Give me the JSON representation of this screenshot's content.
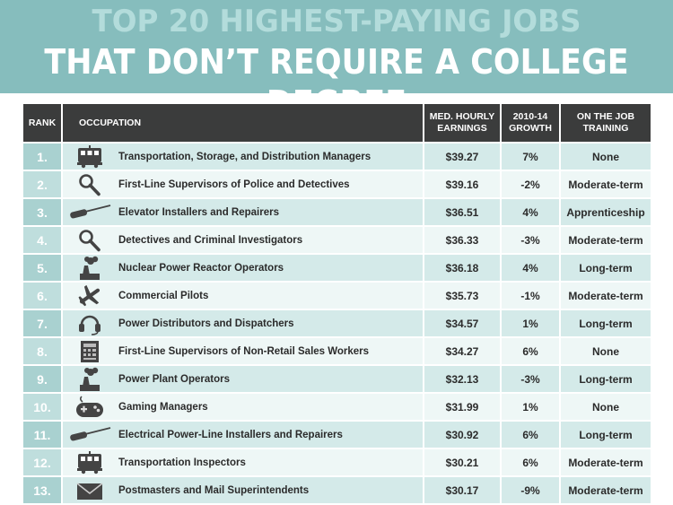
{
  "header": {
    "line1": "TOP 20 HIGHEST-PAYING JOBS",
    "line2": "THAT DON’T REQUIRE A COLLEGE DEGREE"
  },
  "columns": {
    "rank": "RANK",
    "occupation": "OCCUPATION",
    "earnings_1": "MED. HOURLY",
    "earnings_2": "EARNINGS",
    "growth_1": "2010-14",
    "growth_2": "GROWTH",
    "training_1": "ON THE JOB",
    "training_2": "TRAINING"
  },
  "rows": [
    {
      "rank": "1.",
      "icon": "tram-icon",
      "occupation": "Transportation, Storage, and Distribution Managers",
      "earnings": "$39.27",
      "growth": "7%",
      "training": "None"
    },
    {
      "rank": "2.",
      "icon": "magnifier-icon",
      "occupation": "First-Line Supervisors of Police and Detectives",
      "earnings": "$39.16",
      "growth": "-2%",
      "training": "Moderate-term"
    },
    {
      "rank": "3.",
      "icon": "screwdriver-icon",
      "occupation": "Elevator Installers and Repairers",
      "earnings": "$36.51",
      "growth": "4%",
      "training": "Apprenticeship"
    },
    {
      "rank": "4.",
      "icon": "magnifier-icon",
      "occupation": "Detectives and Criminal Investigators",
      "earnings": "$36.33",
      "growth": "-3%",
      "training": "Moderate-term"
    },
    {
      "rank": "5.",
      "icon": "factory-icon",
      "occupation": "Nuclear Power Reactor Operators",
      "earnings": "$36.18",
      "growth": "4%",
      "training": "Long-term"
    },
    {
      "rank": "6.",
      "icon": "airplane-icon",
      "occupation": "Commercial Pilots",
      "earnings": "$35.73",
      "growth": "-1%",
      "training": "Moderate-term"
    },
    {
      "rank": "7.",
      "icon": "headset-icon",
      "occupation": "Power Distributors and Dispatchers",
      "earnings": "$34.57",
      "growth": "1%",
      "training": "Long-term"
    },
    {
      "rank": "8.",
      "icon": "cash-register-icon",
      "occupation": "First-Line Supervisors of Non-Retail Sales Workers",
      "earnings": "$34.27",
      "growth": "6%",
      "training": "None"
    },
    {
      "rank": "9.",
      "icon": "factory-icon",
      "occupation": "Power Plant Operators",
      "earnings": "$32.13",
      "growth": "-3%",
      "training": "Long-term"
    },
    {
      "rank": "10.",
      "icon": "gamepad-icon",
      "occupation": "Gaming Managers",
      "earnings": "$31.99",
      "growth": "1%",
      "training": "None"
    },
    {
      "rank": "11.",
      "icon": "screwdriver-icon",
      "occupation": "Electrical Power-Line Installers and Repairers",
      "earnings": "$30.92",
      "growth": "6%",
      "training": "Long-term"
    },
    {
      "rank": "12.",
      "icon": "tram-icon",
      "occupation": "Transportation Inspectors",
      "earnings": "$30.21",
      "growth": "6%",
      "training": "Moderate-term"
    },
    {
      "rank": "13.",
      "icon": "envelope-icon",
      "occupation": "Postmasters and Mail Superintendents",
      "earnings": "$30.17",
      "growth": "-9%",
      "training": "Moderate-term"
    }
  ],
  "colors": {
    "header_bg": "#86bdbd",
    "title_light": "#b3dcdb",
    "column_header_bg": "#3b3c3c",
    "row_odd": "#d4eae9",
    "row_even": "#eef7f6",
    "rank_cell": "#a9d1d0",
    "icon_dark": "#444444"
  }
}
